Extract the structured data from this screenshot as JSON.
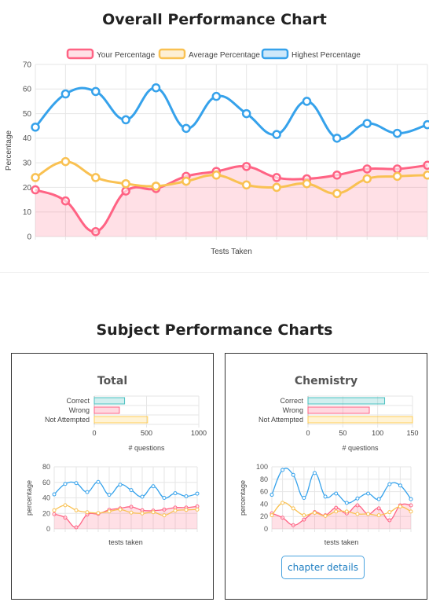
{
  "headings": {
    "overall": "Overall Performance Chart",
    "subject": "Subject Performance Charts"
  },
  "cards": [
    {
      "title": "Total"
    },
    {
      "title": "Chemistry",
      "button_label": "chapter details"
    }
  ],
  "colors": {
    "your": "#ff6384",
    "your_fill": "rgba(255,99,132,0.2)",
    "average": "#f9c152",
    "highest": "#36a2eb",
    "correct_fill": "rgba(75,192,192,0.25)",
    "correct_border": "#4bc0c0",
    "wrong_fill": "rgba(255,99,132,0.25)",
    "wrong_border": "#ff6384",
    "notatt_fill": "rgba(255,206,86,0.25)",
    "notatt_border": "#ffce56",
    "grid": "#e6e6e6"
  },
  "chart_data": [
    {
      "type": "line",
      "title": "",
      "xlabel": "Tests Taken",
      "ylabel": "Percentage",
      "ylim": [
        0,
        70
      ],
      "yticks": [
        0,
        10,
        20,
        30,
        40,
        50,
        60,
        70
      ],
      "legend": "top",
      "grid": true,
      "x_count": 14,
      "series": [
        {
          "name": "Your Percentage",
          "values": [
            19,
            14.5,
            2,
            18.5,
            19.5,
            24.5,
            26.5,
            28.5,
            24,
            23.5,
            25,
            27.5,
            27.5,
            29
          ],
          "fill": true
        },
        {
          "name": "Average Percentage",
          "values": [
            24,
            30.5,
            24,
            21.5,
            20.5,
            22.5,
            25,
            21,
            20,
            21.5,
            17.5,
            23.5,
            24.5,
            25
          ],
          "fill": false
        },
        {
          "name": "Highest Percentage",
          "values": [
            44.5,
            58,
            59,
            47.5,
            60.5,
            44,
            57,
            50,
            41.5,
            55,
            40,
            46,
            42,
            45.5
          ],
          "fill": false
        }
      ]
    },
    {
      "type": "bar",
      "orientation": "horizontal",
      "card": "Total",
      "categories": [
        "Correct",
        "Wrong",
        "Not Attempted"
      ],
      "values": [
        290,
        240,
        510
      ],
      "xlabel": "# questions",
      "xlim": [
        0,
        1000
      ],
      "xticks": [
        0,
        500,
        1000
      ],
      "grid": true
    },
    {
      "type": "line",
      "card": "Total",
      "xlabel": "tests taken",
      "ylabel": "percentage",
      "ylim": [
        0,
        80
      ],
      "yticks": [
        0,
        20,
        40,
        60,
        80
      ],
      "grid": true,
      "x_count": 14,
      "series": [
        {
          "values": [
            19,
            14.5,
            2,
            18.5,
            19.5,
            24.5,
            26.5,
            28.5,
            24,
            23.5,
            25,
            27.5,
            27.5,
            29
          ],
          "fill": true
        },
        {
          "values": [
            24,
            30.5,
            24,
            21.5,
            20.5,
            22.5,
            25,
            21,
            20,
            21.5,
            17.5,
            23.5,
            24.5,
            25
          ],
          "fill": false
        },
        {
          "values": [
            44.5,
            58,
            59,
            47.5,
            60.5,
            44,
            57,
            50,
            41.5,
            55,
            40,
            46,
            42,
            45.5
          ],
          "fill": false
        }
      ]
    },
    {
      "type": "bar",
      "orientation": "horizontal",
      "card": "Chemistry",
      "categories": [
        "Correct",
        "Wrong",
        "Not Attempted"
      ],
      "values": [
        110,
        88,
        150
      ],
      "xlabel": "# questions",
      "xlim": [
        0,
        150
      ],
      "xticks": [
        0,
        50,
        100,
        150
      ],
      "grid": true
    },
    {
      "type": "line",
      "card": "Chemistry",
      "xlabel": "tests taken",
      "ylabel": "percentage",
      "ylim": [
        0,
        100
      ],
      "yticks": [
        0,
        20,
        40,
        60,
        80,
        100
      ],
      "grid": true,
      "x_count": 14,
      "series": [
        {
          "values": [
            25,
            18,
            6,
            15,
            27,
            22,
            34,
            25,
            38,
            24,
            33,
            14,
            38,
            38
          ],
          "fill": true
        },
        {
          "values": [
            22,
            42,
            33,
            22,
            26,
            21,
            28,
            28,
            24,
            24,
            22,
            27,
            36,
            28
          ],
          "fill": false
        },
        {
          "values": [
            55,
            95,
            87,
            50,
            90,
            52,
            57,
            42,
            49,
            57,
            48,
            72,
            70,
            48
          ],
          "fill": false
        }
      ]
    }
  ]
}
